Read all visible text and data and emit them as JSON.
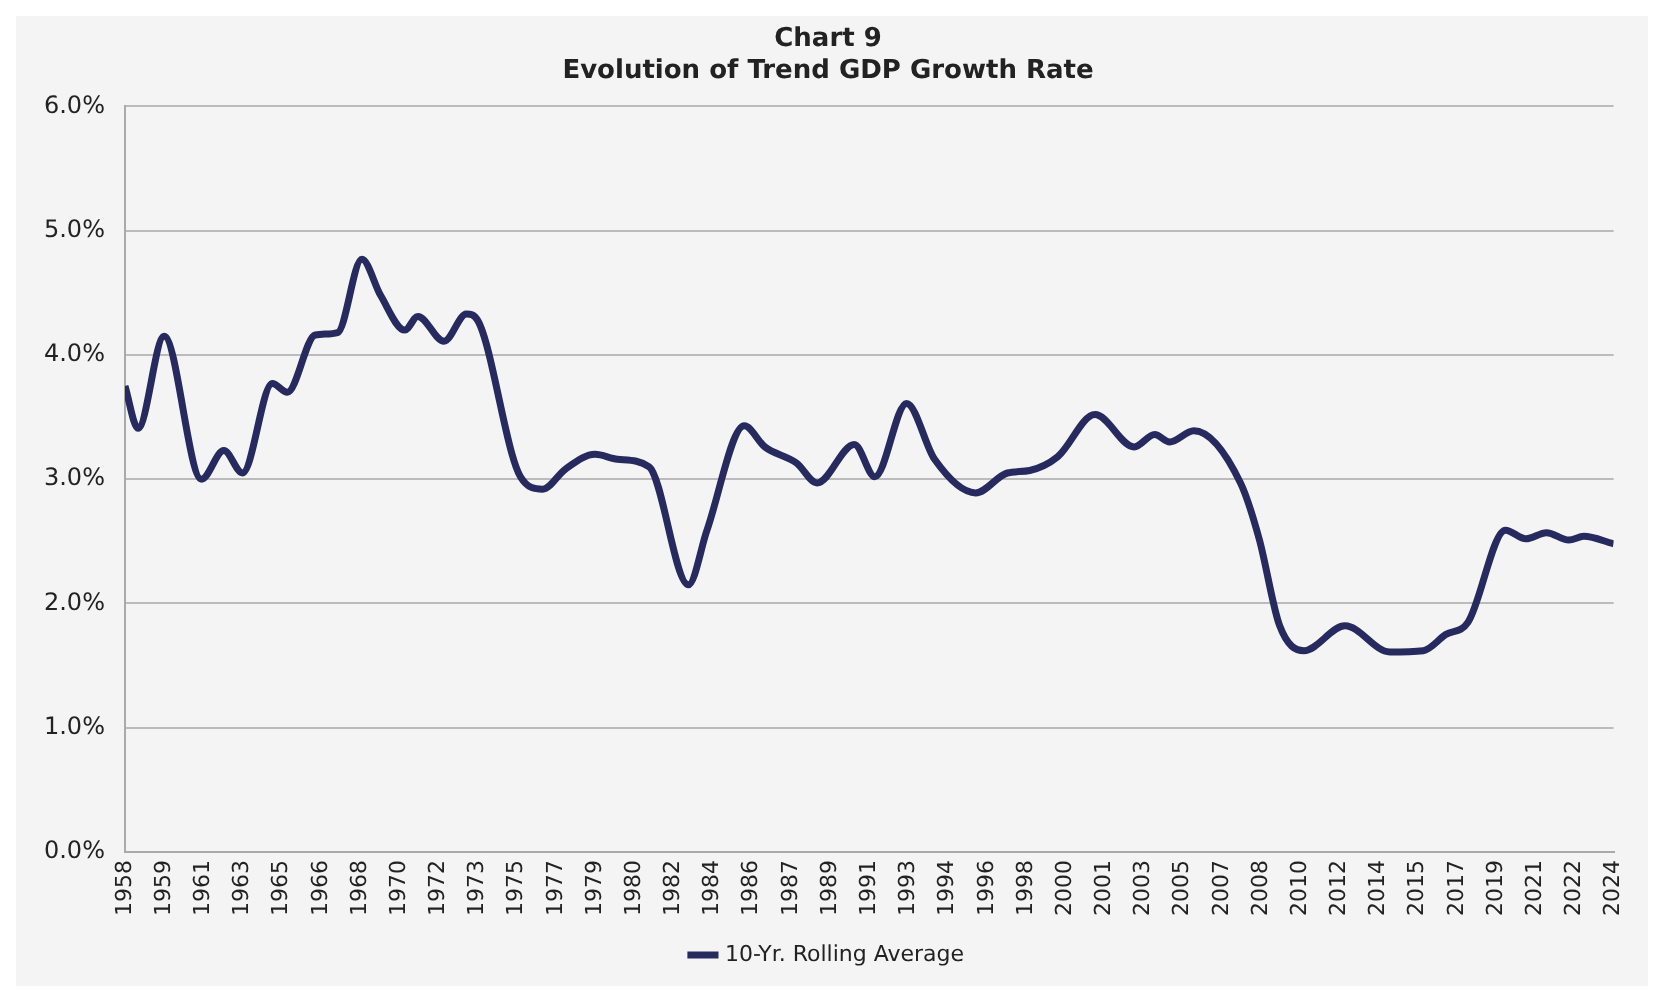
{
  "chart_data": {
    "type": "line",
    "title": "Chart 9",
    "subtitle": "Evolution of Trend GDP Growth Rate",
    "x": [
      "1958-01",
      "1958-08",
      "1959-10",
      "1961-06",
      "1962-06",
      "1963-04",
      "1964-08",
      "1965-04",
      "1966-07",
      "1967-07",
      "1968-08",
      "1969-06",
      "1970-07",
      "1971-02",
      "1972-04",
      "1973-04",
      "1973-10",
      "1975-09",
      "1976-09",
      "1977-09",
      "1979-01",
      "1980-01",
      "1981-06",
      "1983-03",
      "1984-01",
      "1985-09",
      "1986-08",
      "1988-01",
      "1988-12",
      "1990-08",
      "1991-07",
      "1992-12",
      "1994-03",
      "1996-01",
      "1997-06",
      "1998-06",
      "1999-09",
      "2001-05",
      "2003-02",
      "2004-01",
      "2004-09",
      "2005-10",
      "2007-11",
      "2008-09",
      "2009-08",
      "2010-09",
      "2012-07",
      "2014-07",
      "2016-01",
      "2017-01",
      "2018-01",
      "2019-09",
      "2020-08",
      "2021-07",
      "2022-07",
      "2023-03",
      "2024-07"
    ],
    "series": [
      {
        "name": "10-Yr. Rolling Average",
        "color": "#262a5e",
        "values": [
          3.75,
          3.41,
          4.15,
          3.0,
          3.23,
          3.05,
          3.77,
          3.7,
          4.16,
          4.18,
          4.77,
          4.48,
          4.2,
          4.31,
          4.11,
          4.33,
          4.28,
          3.02,
          2.92,
          3.08,
          3.2,
          3.16,
          3.1,
          2.15,
          2.59,
          3.43,
          3.26,
          3.13,
          2.97,
          3.28,
          3.02,
          3.61,
          3.16,
          2.89,
          3.05,
          3.07,
          3.18,
          3.52,
          3.26,
          3.36,
          3.3,
          3.39,
          2.97,
          2.52,
          1.82,
          1.62,
          1.82,
          1.61,
          1.62,
          1.75,
          1.85,
          2.59,
          2.52,
          2.57,
          2.51,
          2.54,
          2.48
        ]
      }
    ],
    "xlim": [
      "1958-01",
      "2024-07"
    ],
    "xticks": [
      {
        "value": "1958-01",
        "label": "1958"
      },
      {
        "value": "1959-10",
        "label": "1959"
      },
      {
        "value": "1961-07",
        "label": "1961"
      },
      {
        "value": "1963-04",
        "label": "1963"
      },
      {
        "value": "1965-01",
        "label": "1965"
      },
      {
        "value": "1966-10",
        "label": "1966"
      },
      {
        "value": "1968-07",
        "label": "1968"
      },
      {
        "value": "1970-04",
        "label": "1970"
      },
      {
        "value": "1972-01",
        "label": "1972"
      },
      {
        "value": "1973-10",
        "label": "1973"
      },
      {
        "value": "1975-07",
        "label": "1975"
      },
      {
        "value": "1977-04",
        "label": "1977"
      },
      {
        "value": "1979-01",
        "label": "1979"
      },
      {
        "value": "1980-10",
        "label": "1980"
      },
      {
        "value": "1982-07",
        "label": "1982"
      },
      {
        "value": "1984-04",
        "label": "1984"
      },
      {
        "value": "1986-01",
        "label": "1986"
      },
      {
        "value": "1987-10",
        "label": "1987"
      },
      {
        "value": "1989-07",
        "label": "1989"
      },
      {
        "value": "1991-04",
        "label": "1991"
      },
      {
        "value": "1993-01",
        "label": "1993"
      },
      {
        "value": "1994-10",
        "label": "1994"
      },
      {
        "value": "1996-07",
        "label": "1996"
      },
      {
        "value": "1998-04",
        "label": "1998"
      },
      {
        "value": "2000-01",
        "label": "2000"
      },
      {
        "value": "2001-10",
        "label": "2001"
      },
      {
        "value": "2003-07",
        "label": "2003"
      },
      {
        "value": "2005-04",
        "label": "2005"
      },
      {
        "value": "2007-01",
        "label": "2007"
      },
      {
        "value": "2008-10",
        "label": "2008"
      },
      {
        "value": "2010-07",
        "label": "2010"
      },
      {
        "value": "2012-04",
        "label": "2012"
      },
      {
        "value": "2014-01",
        "label": "2014"
      },
      {
        "value": "2015-10",
        "label": "2015"
      },
      {
        "value": "2017-07",
        "label": "2017"
      },
      {
        "value": "2019-04",
        "label": "2019"
      },
      {
        "value": "2021-01",
        "label": "2021"
      },
      {
        "value": "2022-10",
        "label": "2022"
      },
      {
        "value": "2024-07",
        "label": "2024"
      }
    ],
    "ylim": [
      0,
      6
    ],
    "yticks": [
      {
        "value": 0,
        "label": "0.0%"
      },
      {
        "value": 1,
        "label": "1.0%"
      },
      {
        "value": 2,
        "label": "2.0%"
      },
      {
        "value": 3,
        "label": "3.0%"
      },
      {
        "value": 4,
        "label": "4.0%"
      },
      {
        "value": 5,
        "label": "5.0%"
      },
      {
        "value": 6,
        "label": "6.0%"
      }
    ],
    "grid": "y",
    "legend": "bottom"
  }
}
